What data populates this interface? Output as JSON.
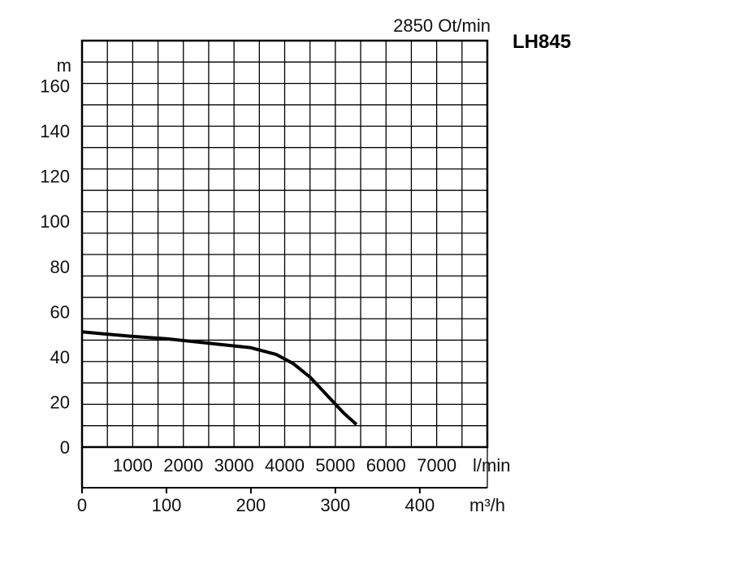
{
  "chart_data": {
    "type": "line",
    "title": "LH845",
    "subtitle": "2850 Ot/min",
    "ylabel": "m",
    "x_lpm_label": "l/min",
    "x_m3h_label": "m³/h",
    "ylim": [
      0,
      180
    ],
    "xlim_m3h": [
      0,
      480
    ],
    "xlim_lpm": [
      0,
      8000
    ],
    "grid": true,
    "y_ticks": [
      {
        "value": 0,
        "label": "0"
      },
      {
        "value": 20,
        "label": "20"
      },
      {
        "value": 40,
        "label": "40"
      },
      {
        "value": 60,
        "label": "60"
      },
      {
        "value": 80,
        "label": "80"
      },
      {
        "value": 100,
        "label": "100"
      },
      {
        "value": 120,
        "label": "120"
      },
      {
        "value": 140,
        "label": "140"
      },
      {
        "value": 160,
        "label": "160"
      }
    ],
    "x_lpm_ticks": [
      {
        "value": 1000,
        "label": "1000"
      },
      {
        "value": 2000,
        "label": "2000"
      },
      {
        "value": 3000,
        "label": "3000"
      },
      {
        "value": 4000,
        "label": "4000"
      },
      {
        "value": 5000,
        "label": "5000"
      },
      {
        "value": 6000,
        "label": "6000"
      },
      {
        "value": 7000,
        "label": "7000"
      }
    ],
    "x_m3h_ticks": [
      {
        "value": 0,
        "label": "0"
      },
      {
        "value": 100,
        "label": "100"
      },
      {
        "value": 200,
        "label": "200"
      },
      {
        "value": 300,
        "label": "300"
      },
      {
        "value": 400,
        "label": "400"
      }
    ],
    "series": [
      {
        "x_m3h": [
          0,
          30,
          60,
          100,
          150,
          200,
          230,
          250,
          270,
          290,
          310,
          325
        ],
        "y_m": [
          51,
          50,
          49,
          48,
          46,
          44,
          41,
          37,
          31,
          23,
          15,
          10
        ]
      }
    ]
  }
}
